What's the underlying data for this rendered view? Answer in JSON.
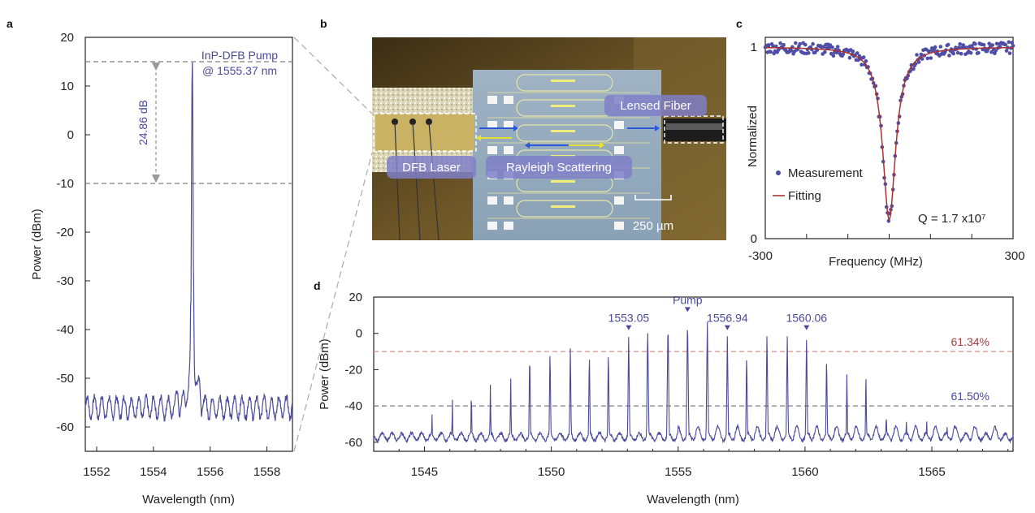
{
  "panel_labels": {
    "a": "a",
    "b": "b",
    "c": "c",
    "d": "d"
  },
  "colors": {
    "trace": "#4b4a98",
    "fit": "#a83232",
    "measure_dots": "#4f4ea6",
    "dashed_gray": "#808080",
    "dashed_red": "#d99a9a",
    "photo_label_bg": "#7f7fc8"
  },
  "photo": {
    "labels": {
      "dfb_laser": "DFB Laser",
      "rayleigh": "Rayleigh Scattering",
      "lensed_fiber": "Lensed Fiber",
      "scale": "250 µm"
    }
  },
  "chart_data": [
    {
      "panel": "a",
      "type": "line",
      "xlabel": "Wavelength (nm)",
      "ylabel": "Power (dBm)",
      "xlim": [
        1551.6,
        1558.9
      ],
      "ylim": [
        -65,
        20
      ],
      "xticks": [
        1552,
        1554,
        1556,
        1558
      ],
      "yticks": [
        20,
        10,
        0,
        -10,
        -20,
        -30,
        -40,
        -50,
        -60
      ],
      "peak": {
        "x": 1555.37,
        "y": 15
      },
      "series": [
        {
          "peak_x": 1555.37,
          "peak_y": 15,
          "floor": -56
        }
      ],
      "hlines": [
        15,
        -10
      ],
      "annotations": {
        "pump_label_line1": "InP-DFB Pump",
        "pump_label_line2": "@ 1555.37 nm",
        "arrow_label": "24.86 dB"
      },
      "grid": false
    },
    {
      "panel": "c",
      "type": "scatter",
      "xlabel": "Frequency (MHz)",
      "ylabel": "Normalized",
      "xlim": [
        -300,
        300
      ],
      "ylim": [
        0,
        1.05
      ],
      "xtick_labels": [
        "-300",
        "300"
      ],
      "ytick_labels": [
        "1",
        "0"
      ],
      "lorentzian": {
        "center": 0,
        "fwhm_mhz": 12,
        "min": 0.1
      },
      "series": [
        {
          "name": "Measurement"
        },
        {
          "name": "Fitting"
        }
      ],
      "annotation_q": "Q = 1.7 x10⁷",
      "legend": "lower-left",
      "grid": false
    },
    {
      "panel": "d",
      "type": "line",
      "xlabel": "Wavelength (nm)",
      "ylabel": "Power (dBm)",
      "xlim": [
        1543,
        1568.2
      ],
      "ylim": [
        -65,
        20
      ],
      "xticks": [
        1545,
        1550,
        1555,
        1560,
        1565
      ],
      "yticks": [
        20,
        0,
        -20,
        -40,
        -60
      ],
      "comb_lines": [
        {
          "x": 1545.3,
          "y": -44
        },
        {
          "x": 1546.1,
          "y": -33
        },
        {
          "x": 1546.85,
          "y": -28
        },
        {
          "x": 1547.6,
          "y": -27
        },
        {
          "x": 1548.4,
          "y": -22
        },
        {
          "x": 1549.15,
          "y": -8
        },
        {
          "x": 1549.95,
          "y": -7
        },
        {
          "x": 1550.75,
          "y": -7
        },
        {
          "x": 1551.5,
          "y": -8
        },
        {
          "x": 1552.25,
          "y": -7
        },
        {
          "x": 1553.05,
          "y": 0
        },
        {
          "x": 1553.8,
          "y": 6
        },
        {
          "x": 1554.6,
          "y": 9
        },
        {
          "x": 1555.37,
          "y": 10
        },
        {
          "x": 1556.15,
          "y": 8
        },
        {
          "x": 1556.94,
          "y": 0
        },
        {
          "x": 1557.7,
          "y": -8
        },
        {
          "x": 1558.5,
          "y": 1
        },
        {
          "x": 1559.3,
          "y": 0
        },
        {
          "x": 1560.06,
          "y": 0
        },
        {
          "x": 1560.85,
          "y": -10
        },
        {
          "x": 1561.65,
          "y": -20
        },
        {
          "x": 1562.4,
          "y": -20
        },
        {
          "x": 1563.2,
          "y": -38
        },
        {
          "x": 1564.0,
          "y": -42
        },
        {
          "x": 1564.8,
          "y": -46
        },
        {
          "x": 1565.6,
          "y": -50
        }
      ],
      "hlines": [
        {
          "y": -10,
          "label": "61.34%"
        },
        {
          "y": -40,
          "label": "61.50%"
        }
      ],
      "markers": [
        {
          "x": 1553.05,
          "y": 0,
          "label": "1553.05"
        },
        {
          "x": 1555.37,
          "y": 10,
          "label": "Pump"
        },
        {
          "x": 1556.94,
          "y": 0,
          "label": "1556.94"
        },
        {
          "x": 1560.06,
          "y": 0,
          "label": "1560.06"
        }
      ],
      "grid": false
    }
  ]
}
